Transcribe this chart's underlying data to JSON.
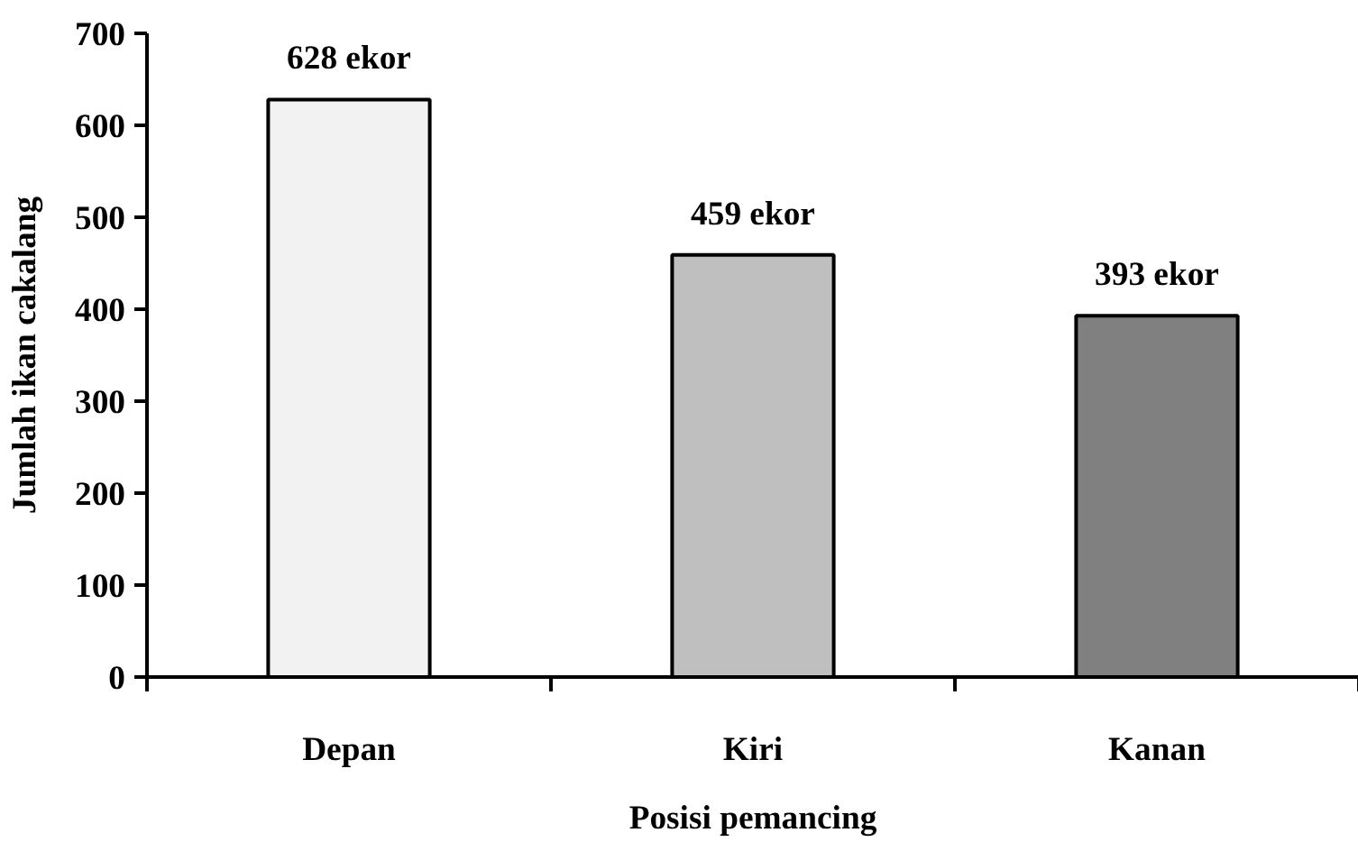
{
  "chart_data": {
    "type": "bar",
    "xlabel": "Posisi pemancing",
    "ylabel": "Jumlah ikan cakalang",
    "categories": [
      "Depan",
      "Kiri",
      "Kanan"
    ],
    "values": [
      628,
      459,
      393
    ],
    "colors": [
      "#f2f2f2",
      "#bfbfbf",
      "#808080"
    ],
    "value_labels": [
      "628 ekor",
      "459 ekor",
      "393 ekor"
    ],
    "ylim": [
      0,
      700
    ],
    "yticks": [
      0,
      100,
      200,
      300,
      400,
      500,
      600,
      700
    ],
    "grid": false
  }
}
